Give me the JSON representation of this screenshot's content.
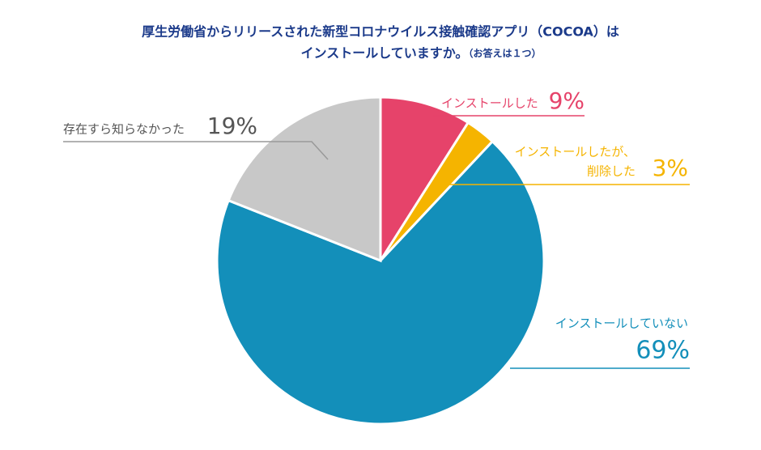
{
  "chart_data": {
    "type": "pie",
    "title": [
      "厚生労働省からリリースされた新型コロナウイルス接触確認アプリ（COCOA）は",
      "インストールしていますか。"
    ],
    "note": "（お答えは１つ）",
    "categories": [
      [
        "インストールした"
      ],
      [
        "インストールしたが、",
        "削除した"
      ],
      [
        "インストールしていない"
      ],
      [
        "存在すら知らなかった"
      ]
    ],
    "values": [
      9,
      3,
      69,
      19
    ],
    "value_labels": [
      "9%",
      "3%",
      "69%",
      "19%"
    ],
    "colors": [
      "#e6436a",
      "#f5b400",
      "#138fba",
      "#c8c8c8"
    ]
  }
}
